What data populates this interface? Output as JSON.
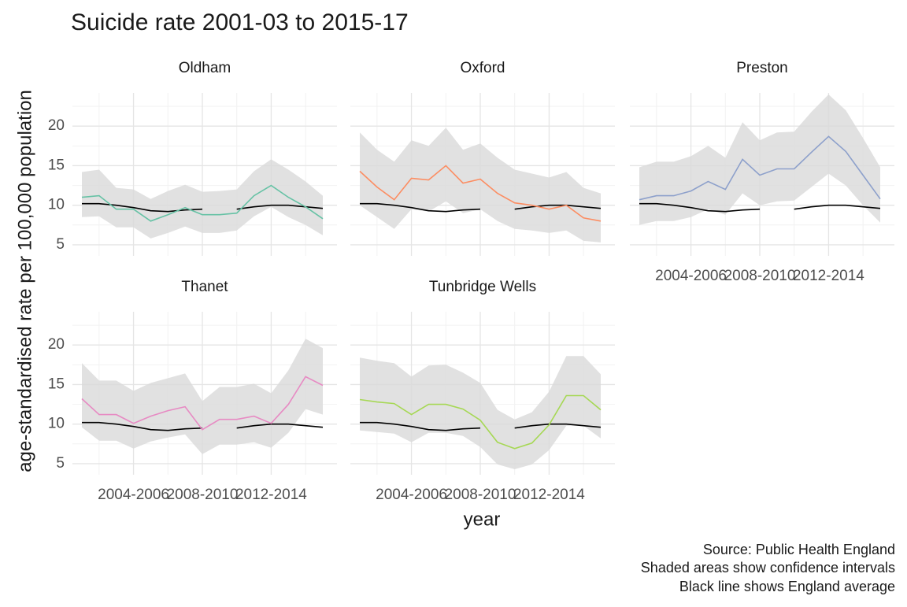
{
  "chart_data": {
    "type": "line",
    "title": "Suicide rate 2001-03 to 2015-17",
    "x_label": "year",
    "y_label": "age-standardised rate per 100,000 population",
    "caption": [
      "Source: Public Health England",
      "Shaded areas show confidence intervals",
      "Black line shows England average"
    ],
    "categories": [
      null,
      null,
      null,
      "2004-2006",
      null,
      null,
      null,
      "2008-2010",
      null,
      null,
      null,
      "2012-2014",
      null,
      null,
      null
    ],
    "ylim": [
      3.6,
      24.2
    ],
    "yticks": [
      5,
      10,
      15,
      20
    ],
    "grid": true,
    "ribbon_color": "#d9d9d9",
    "reference": {
      "color": "#000000",
      "values": [
        10.2,
        10.2,
        10.0,
        9.7,
        9.3,
        9.2,
        9.4,
        9.5,
        null,
        9.5,
        9.8,
        10.0,
        10.0,
        9.8,
        9.6
      ]
    },
    "facets": [
      {
        "title": "Oldham",
        "color": "#66c2a5",
        "values": [
          11.0,
          11.2,
          9.5,
          9.5,
          8.0,
          8.8,
          9.7,
          8.8,
          8.8,
          9.0,
          11.2,
          12.5,
          11.0,
          9.8,
          8.3
        ],
        "upper": [
          14.2,
          14.5,
          12.2,
          12.0,
          10.8,
          11.8,
          12.6,
          11.7,
          11.8,
          12.0,
          14.3,
          15.8,
          14.5,
          13.0,
          11.2
        ],
        "lower": [
          8.5,
          8.6,
          7.2,
          7.2,
          5.8,
          6.5,
          7.3,
          6.5,
          6.5,
          6.8,
          8.6,
          9.8,
          8.5,
          7.5,
          6.2
        ]
      },
      {
        "title": "Oxford",
        "color": "#fc8d62",
        "values": [
          14.3,
          12.3,
          10.7,
          13.4,
          13.2,
          15.0,
          12.8,
          13.3,
          11.5,
          10.3,
          10.0,
          9.5,
          10.0,
          8.4,
          8.0
        ],
        "upper": [
          19.2,
          17.0,
          15.5,
          18.2,
          17.5,
          19.8,
          17.0,
          17.8,
          16.0,
          14.5,
          14.0,
          13.5,
          14.2,
          12.2,
          11.5
        ],
        "lower": [
          10.0,
          8.5,
          7.0,
          9.5,
          9.2,
          10.5,
          9.0,
          9.5,
          8.0,
          7.0,
          6.8,
          6.5,
          6.8,
          5.5,
          5.3
        ]
      },
      {
        "title": "Preston",
        "color": "#8da0cb",
        "values": [
          10.7,
          11.2,
          11.2,
          11.8,
          13.0,
          12.0,
          15.8,
          13.8,
          14.6,
          14.6,
          16.7,
          18.7,
          16.8,
          13.8,
          10.8
        ],
        "upper": [
          14.8,
          15.5,
          15.5,
          16.2,
          17.5,
          16.0,
          20.5,
          18.2,
          19.2,
          19.3,
          21.8,
          24.0,
          22.0,
          18.5,
          14.8
        ],
        "lower": [
          7.5,
          8.0,
          8.0,
          8.5,
          9.5,
          8.8,
          11.5,
          10.0,
          10.5,
          10.6,
          12.3,
          14.0,
          12.5,
          10.0,
          7.8
        ]
      },
      {
        "title": "Thanet",
        "color": "#e78ac3",
        "values": [
          13.2,
          11.2,
          11.2,
          10.1,
          11.0,
          11.7,
          12.2,
          9.3,
          10.6,
          10.6,
          11.0,
          10.1,
          12.5,
          16.0,
          14.9
        ],
        "upper": [
          17.7,
          15.5,
          15.5,
          14.2,
          15.2,
          15.8,
          16.4,
          12.9,
          14.7,
          14.7,
          15.1,
          13.9,
          16.8,
          20.8,
          19.6
        ],
        "lower": [
          9.6,
          7.9,
          7.9,
          6.9,
          7.8,
          8.3,
          8.7,
          6.2,
          7.4,
          7.4,
          7.7,
          7.0,
          8.9,
          11.9,
          11.2
        ]
      },
      {
        "title": "Tunbridge Wells",
        "color": "#a6d854",
        "values": [
          13.1,
          12.8,
          12.6,
          11.2,
          12.5,
          12.5,
          11.9,
          10.5,
          7.7,
          6.9,
          7.6,
          9.9,
          13.6,
          13.6,
          11.8
        ],
        "upper": [
          18.4,
          18.0,
          17.7,
          16.0,
          17.4,
          17.5,
          16.5,
          15.2,
          11.8,
          10.6,
          11.5,
          14.1,
          18.6,
          18.6,
          16.3
        ],
        "lower": [
          9.2,
          9.0,
          8.8,
          7.7,
          8.9,
          8.9,
          8.5,
          7.1,
          4.9,
          4.3,
          4.9,
          6.7,
          9.8,
          9.8,
          8.2
        ]
      }
    ]
  }
}
